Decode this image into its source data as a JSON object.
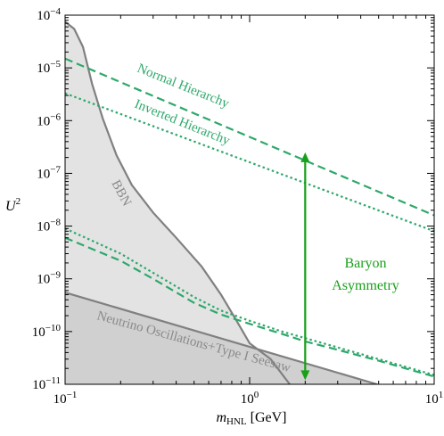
{
  "chart_data": {
    "type": "line",
    "x_scale": "log",
    "y_scale": "log",
    "xlim": [
      0.1,
      10
    ],
    "ylim": [
      1e-11,
      0.0001
    ],
    "xlabel_main": "m",
    "xlabel_sub": "HNL",
    "xlabel_unit": " [GeV]",
    "ylabel_main": "U",
    "ylabel_sup": "2",
    "x_ticks": [
      {
        "value": 0.1,
        "base": "10",
        "exp": "−1"
      },
      {
        "value": 1,
        "base": "10",
        "exp": "0"
      },
      {
        "value": 10,
        "base": "10",
        "exp": "1"
      }
    ],
    "y_ticks": [
      {
        "value": 0.0001,
        "base": "10",
        "exp": "−4"
      },
      {
        "value": 1e-05,
        "base": "10",
        "exp": "−5"
      },
      {
        "value": 1e-06,
        "base": "10",
        "exp": "−6"
      },
      {
        "value": 1e-07,
        "base": "10",
        "exp": "−7"
      },
      {
        "value": 1e-08,
        "base": "10",
        "exp": "−8"
      },
      {
        "value": 1e-09,
        "base": "10",
        "exp": "−9"
      },
      {
        "value": 1e-10,
        "base": "10",
        "exp": "−10"
      },
      {
        "value": 1e-11,
        "base": "10",
        "exp": "−11"
      }
    ],
    "regions": [
      {
        "name": "BBN",
        "fill": "#e3e3e3",
        "boundary": [
          [
            0.1,
            7.5e-05
          ],
          [
            0.112,
            5.5e-05
          ],
          [
            0.125,
            2.5e-05
          ],
          [
            0.14,
            5e-06
          ],
          [
            0.16,
            1.1e-06
          ],
          [
            0.19,
            2.2e-07
          ],
          [
            0.23,
            6e-08
          ],
          [
            0.3,
            1.8e-08
          ],
          [
            0.4,
            6e-09
          ],
          [
            0.55,
            1.7e-09
          ],
          [
            0.7,
            5e-10
          ],
          [
            0.85,
            1.6e-10
          ],
          [
            1.0,
            6e-11
          ],
          [
            1.3,
            3e-11
          ],
          [
            1.65,
            1e-11
          ]
        ]
      },
      {
        "name": "Neutrino Oscillations+Type I Seesaw",
        "fill": "#d0d0d0",
        "boundary": [
          [
            0.1,
            5.5e-10
          ],
          [
            4.9,
            1e-11
          ]
        ]
      }
    ],
    "series": [
      {
        "name": "Normal Hierarchy",
        "color": "#2ea86b",
        "dash": "dashed",
        "points": [
          [
            0.1,
            1.5e-05
          ],
          [
            10,
            1.6e-08
          ]
        ]
      },
      {
        "name": "Inverted Hierarchy",
        "color": "#2ea86b",
        "dash": "dotted",
        "points": [
          [
            0.1,
            3.3e-06
          ],
          [
            10,
            8e-09
          ]
        ]
      },
      {
        "color": "#2ea86b",
        "dash": "dashed",
        "points": [
          [
            0.1,
            6e-09
          ],
          [
            0.2,
            2.2e-09
          ],
          [
            0.3,
            1e-09
          ],
          [
            0.5,
            3.5e-10
          ],
          [
            0.7,
            2.1e-10
          ],
          [
            1.0,
            1.4e-10
          ],
          [
            1.5,
            9e-11
          ],
          [
            2,
            6.5e-11
          ],
          [
            3,
            4.5e-11
          ],
          [
            5,
            2.8e-11
          ],
          [
            10,
            1.4e-11
          ]
        ]
      },
      {
        "color": "#2ea86b",
        "dash": "dotted",
        "points": [
          [
            0.1,
            9e-09
          ],
          [
            0.2,
            3e-09
          ],
          [
            0.3,
            1.3e-09
          ],
          [
            0.5,
            4.5e-10
          ],
          [
            0.7,
            2.5e-10
          ],
          [
            1.0,
            1.6e-10
          ],
          [
            1.5,
            1e-10
          ],
          [
            2,
            7.5e-11
          ],
          [
            3,
            5e-11
          ],
          [
            5,
            3e-11
          ],
          [
            10,
            1.5e-11
          ]
        ]
      }
    ],
    "annotations": [
      {
        "text": "BBN"
      },
      {
        "text": "Normal Hierarchy"
      },
      {
        "text": "Inverted Hierarchy"
      },
      {
        "text": "Neutrino Oscillations+Type I Seesaw"
      },
      {
        "text_line1": "Baryon",
        "text_line2": "Asymmetry"
      }
    ],
    "arrow": {
      "x": 2.0,
      "y_from": 2.5e-07,
      "y_to": 1.2e-11,
      "color": "#19a019"
    }
  }
}
